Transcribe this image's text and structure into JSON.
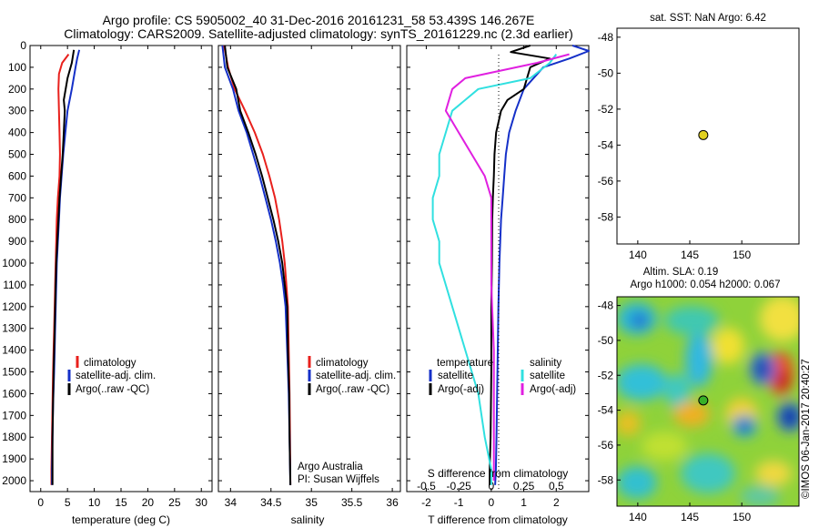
{
  "header": {
    "line1": "Argo profile: CS 5905002_40 31-Dec-2016 20161231_58 53.439S 146.267E",
    "line2": "Climatology: CARS2009. Satellite-adjusted climatology: synTS_20161229.nc (2.3d earlier)"
  },
  "colors": {
    "climatology": "#e8201c",
    "satellite_adj": "#1530c8",
    "argo": "#000000",
    "sal_satellite": "#30e0e0",
    "sal_argo": "#e020e0",
    "marker": "#e0d020"
  },
  "depth_ticks": [
    "0",
    "100",
    "200",
    "300",
    "400",
    "500",
    "600",
    "700",
    "800",
    "900",
    "1000",
    "1100",
    "1200",
    "1300",
    "1400",
    "1500",
    "1600",
    "1700",
    "1800",
    "1900",
    "2000"
  ],
  "chart_data": [
    {
      "type": "line",
      "xlabel": "temperature (deg C)",
      "xticks": [
        "0",
        "5",
        "10",
        "15",
        "20",
        "25",
        "30"
      ],
      "xlim": [
        -2,
        32
      ],
      "ylim": [
        0,
        2050
      ],
      "y_inverted": true,
      "legend": [
        "climatology",
        "satellite-adj. clim.",
        "Argo(..raw -QC)"
      ],
      "series": [
        {
          "name": "climatology",
          "x": [
            5.2,
            4.0,
            3.4,
            3.3,
            3.4,
            3.5,
            3.6,
            3.5,
            3.2,
            3.0,
            2.9,
            2.8,
            2.7,
            2.6,
            2.5,
            2.3,
            2.2,
            2.1,
            2.0,
            2.0
          ],
          "y": [
            40,
            80,
            130,
            200,
            300,
            400,
            500,
            600,
            700,
            800,
            900,
            1000,
            1100,
            1200,
            1300,
            1500,
            1650,
            1800,
            1950,
            2020
          ]
        },
        {
          "name": "satellite-adj. clim.",
          "x": [
            7.2,
            6.8,
            6.5,
            5.8,
            5.0,
            4.6,
            4.2,
            3.9,
            3.6,
            3.4,
            3.2,
            3.0,
            2.9,
            2.8,
            2.7,
            2.5,
            2.3,
            2.2,
            2.1,
            2.1
          ],
          "y": [
            20,
            60,
            100,
            200,
            300,
            400,
            500,
            600,
            700,
            800,
            900,
            1000,
            1100,
            1200,
            1300,
            1500,
            1650,
            1800,
            1950,
            2020
          ]
        },
        {
          "name": "Argo(..raw -QC)",
          "x": [
            6.2,
            5.8,
            5.0,
            4.3,
            4.5,
            4.3,
            4.1,
            3.8,
            3.5,
            3.3,
            3.1,
            2.9,
            2.8,
            2.7,
            2.6,
            2.4,
            2.3,
            2.2,
            2.2,
            2.2
          ],
          "y": [
            20,
            80,
            150,
            250,
            300,
            400,
            500,
            600,
            700,
            800,
            900,
            1000,
            1100,
            1200,
            1300,
            1500,
            1650,
            1800,
            1950,
            2020
          ]
        }
      ]
    },
    {
      "type": "line",
      "xlabel": "salinity",
      "xticks": [
        "34",
        "34.5",
        "35",
        "35.5",
        "36"
      ],
      "xlim": [
        33.85,
        36.1
      ],
      "ylim": [
        0,
        2050
      ],
      "y_inverted": true,
      "legend": [
        "climatology",
        "satellite-adj. clim.",
        "Argo(..raw -QC)"
      ],
      "annotation": [
        "Argo Australia",
        "PI: Susan Wijffels"
      ],
      "series": [
        {
          "name": "climatology",
          "x": [
            33.92,
            33.97,
            34.05,
            34.18,
            34.3,
            34.4,
            34.48,
            34.55,
            34.6,
            34.64,
            34.67,
            34.69,
            34.71,
            34.72,
            34.73,
            34.735,
            34.74
          ],
          "y": [
            0,
            100,
            200,
            300,
            400,
            500,
            600,
            700,
            800,
            900,
            1000,
            1100,
            1200,
            1400,
            1600,
            1800,
            2020
          ]
        },
        {
          "name": "satellite-adj. clim.",
          "x": [
            33.9,
            33.93,
            34.03,
            34.1,
            34.2,
            34.28,
            34.36,
            34.43,
            34.5,
            34.56,
            34.61,
            34.65,
            34.68,
            34.7,
            34.72,
            34.73,
            34.74
          ],
          "y": [
            0,
            100,
            200,
            300,
            400,
            500,
            600,
            700,
            800,
            900,
            1000,
            1100,
            1200,
            1400,
            1600,
            1800,
            2020
          ]
        },
        {
          "name": "Argo(..raw -QC)",
          "x": [
            33.93,
            33.96,
            34.07,
            34.12,
            34.22,
            34.31,
            34.39,
            34.46,
            34.53,
            34.59,
            34.64,
            34.67,
            34.7,
            34.71,
            34.725,
            34.73,
            34.74
          ],
          "y": [
            0,
            100,
            200,
            300,
            400,
            500,
            600,
            700,
            800,
            900,
            1000,
            1100,
            1200,
            1400,
            1600,
            1800,
            2020
          ]
        }
      ]
    },
    {
      "type": "line",
      "xlabel": "T difference from climatology",
      "top_label": "S difference from climatology",
      "xticks": [
        "-2",
        "-1",
        "0",
        "1",
        "2"
      ],
      "top_xticks": [
        "-0.5",
        "-0.25",
        "0",
        "0.25",
        "0.5"
      ],
      "xlim": [
        -2.6,
        3.0
      ],
      "ylim": [
        0,
        2050
      ],
      "y_inverted": true,
      "legend_temperature": [
        "temperature",
        "satellite",
        "Argo(-adj)"
      ],
      "legend_salinity": [
        "salinity",
        "satellite",
        "Argo(-adj)"
      ],
      "series": [
        {
          "name": "satellite",
          "x": [
            2.5,
            3.0,
            2.4,
            1.6,
            1.0,
            0.75,
            0.55,
            0.45,
            0.4,
            0.35,
            0.3,
            0.25,
            0.22,
            0.2,
            0.18,
            0.16,
            0.14,
            0.12
          ],
          "y": [
            0,
            25,
            60,
            100,
            200,
            300,
            400,
            500,
            600,
            700,
            800,
            1000,
            1200,
            1400,
            1600,
            1800,
            1950,
            2020
          ]
        },
        {
          "name": "Argo(-adj)",
          "x": [
            1.2,
            0.6,
            1.8,
            1.2,
            1.0,
            0.5,
            0.3,
            0.15,
            0.1,
            0.08,
            0.05,
            0.03,
            0.02,
            0.0,
            0.0,
            -0.02,
            -0.05,
            -0.05
          ],
          "y": [
            0,
            30,
            60,
            100,
            200,
            250,
            300,
            400,
            500,
            600,
            700,
            800,
            1000,
            1200,
            1500,
            1800,
            1950,
            2020
          ]
        },
        {
          "name": "satellite (S)",
          "x": [
            0.5,
            0.45,
            0.3,
            -0.1,
            -0.3,
            -0.4,
            -0.4,
            -0.45,
            -0.45,
            -0.4,
            -0.4,
            -0.3,
            -0.2,
            -0.1,
            -0.05,
            0.0,
            0.0
          ],
          "y": [
            40,
            80,
            150,
            200,
            300,
            500,
            600,
            700,
            800,
            900,
            1000,
            1200,
            1400,
            1600,
            1800,
            1950,
            2020
          ]
        },
        {
          "name": "Argo(-adj) (S)",
          "x": [
            0.6,
            0.35,
            -0.2,
            -0.3,
            -0.35,
            -0.25,
            -0.15,
            -0.05,
            0.0,
            0.0,
            0.0,
            0.02,
            0.02,
            0.02
          ],
          "y": [
            40,
            80,
            150,
            200,
            300,
            400,
            500,
            600,
            700,
            900,
            1100,
            1400,
            1700,
            2000
          ]
        }
      ]
    },
    {
      "type": "scatter",
      "title": "sat. SST: NaN Argo: 6.42",
      "xticks": [
        "140",
        "145",
        "150"
      ],
      "yticks": [
        "-48",
        "-50",
        "-52",
        "-54",
        "-56",
        "-58"
      ],
      "xlim": [
        138,
        155.5
      ],
      "ylim": [
        -59.5,
        -47.5
      ],
      "points": [
        {
          "x": 146.3,
          "y": -53.44
        }
      ]
    },
    {
      "type": "heatmap",
      "title_line1": "Altim. SLA: 0.19",
      "title_line2": "Argo h1000: 0.054 h2000: 0.067",
      "xticks": [
        "140",
        "145",
        "150"
      ],
      "yticks": [
        "-48",
        "-50",
        "-52",
        "-54",
        "-56",
        "-58"
      ],
      "xlim": [
        138,
        155.5
      ],
      "ylim": [
        -59.5,
        -47.5
      ],
      "points": [
        {
          "x": 146.3,
          "y": -53.44
        }
      ]
    }
  ],
  "side_text": "©IMOS 06-Jan-2017 20:40:27"
}
